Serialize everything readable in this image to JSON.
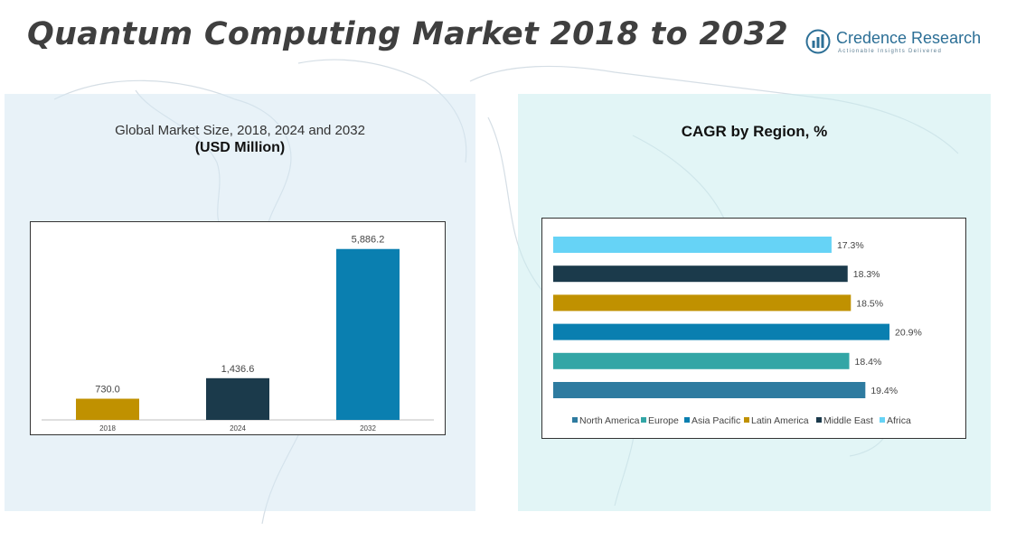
{
  "page": {
    "title": "Quantum Computing Market 2018 to 2032"
  },
  "logo": {
    "name": "Credence Research",
    "tagline": "Actionable Insights Delivered",
    "icon": "bar-chart-circle-icon"
  },
  "left_panel": {
    "title": "Global Market Size, 2018, 2024 and 2032",
    "subtitle": "(USD Million)"
  },
  "right_panel": {
    "title": "CAGR by Region, %"
  },
  "chart_data": [
    {
      "type": "bar",
      "categories": [
        "2018",
        "2024",
        "2032"
      ],
      "values": [
        730.0,
        1436.6,
        5886.2
      ],
      "value_labels": [
        "730.0",
        "1,436.6",
        "5,886.2"
      ],
      "colors": [
        "#c09100",
        "#1b3a4b",
        "#0a7fb0"
      ],
      "ylim": [
        0,
        6500
      ],
      "grid": false,
      "title": "",
      "xlabel": "",
      "ylabel": ""
    },
    {
      "type": "bar",
      "orientation": "horizontal",
      "categories": [
        "Africa",
        "Middle East",
        "Latin America",
        "Asia Pacific",
        "Europe",
        "North America"
      ],
      "values": [
        17.3,
        18.3,
        18.5,
        20.9,
        18.4,
        19.4
      ],
      "value_labels": [
        "17.3%",
        "18.3%",
        "18.5%",
        "20.9%",
        "18.4%",
        "19.4%"
      ],
      "colors": [
        "#66d3f6",
        "#1b3a4b",
        "#c09100",
        "#0a7fb0",
        "#33a6a6",
        "#2e7ba0"
      ],
      "legend": {
        "placement": "bottom",
        "items": [
          {
            "label": "North America",
            "color": "#2e7ba0"
          },
          {
            "label": "Europe",
            "color": "#33a6a6"
          },
          {
            "label": "Asia Pacific",
            "color": "#0a7fb0"
          },
          {
            "label": "Latin America",
            "color": "#c09100"
          },
          {
            "label": "Middle East",
            "color": "#1b3a4b"
          },
          {
            "label": "Africa",
            "color": "#66d3f6"
          }
        ]
      },
      "xlim": [
        0,
        21
      ],
      "grid": false
    }
  ]
}
